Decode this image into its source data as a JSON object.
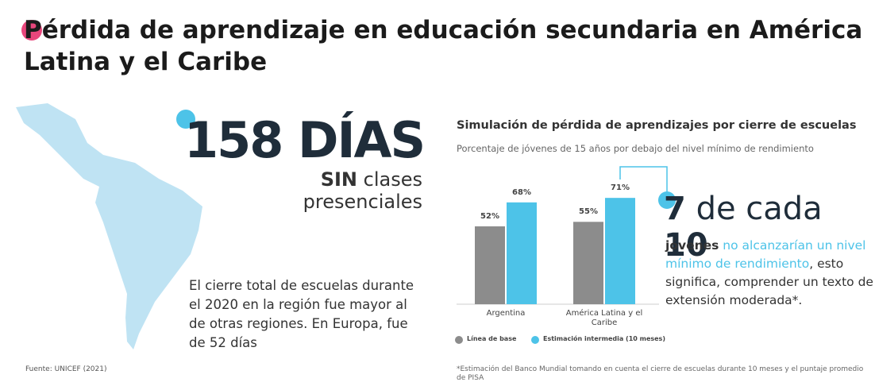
{
  "header": {
    "title": "Pérdida de aprendizaje en educación secundaria en América Latina y el Caribe"
  },
  "left": {
    "big_number": "158 DÍAS",
    "sub_bold": "SIN",
    "sub_rest": "clases presenciales",
    "paragraph": "El cierre total de escuelas durante el 2020 en la región fue mayor al de otras regiones. En Europa, fue de 52 días",
    "source": "Fuente: UNICEF (2021)"
  },
  "chart_data": {
    "type": "bar",
    "title": "Simulación de pérdida de aprendizajes por cierre de escuelas",
    "subtitle": "Porcentaje de jóvenes de 15 años por debajo del nivel mínimo de rendimiento",
    "categories": [
      "Argentina",
      "América Latina y el Caribe"
    ],
    "series": [
      {
        "name": "Línea de base",
        "color": "#8c8c8c",
        "values": [
          52,
          55
        ],
        "value_labels": [
          "52%",
          "55%"
        ]
      },
      {
        "name": "Estimación intermedia (10 meses)",
        "color": "#4dc3e8",
        "values": [
          68,
          71
        ],
        "value_labels": [
          "68%",
          "71%"
        ]
      }
    ],
    "footnote": "*Estimación del Banco Mundial tomando en cuenta el cierre de escuelas durante 10 meses y el puntaje promedio de PISA"
  },
  "callout": {
    "n1": "7",
    "mid": "de cada",
    "n2": "10",
    "text_bold": "jóvenes",
    "text_blue": "no alcanzarían un nivel mínimo de rendimiento",
    "text_rest": ", esto significa, comprender un texto de extensión moderada*."
  }
}
